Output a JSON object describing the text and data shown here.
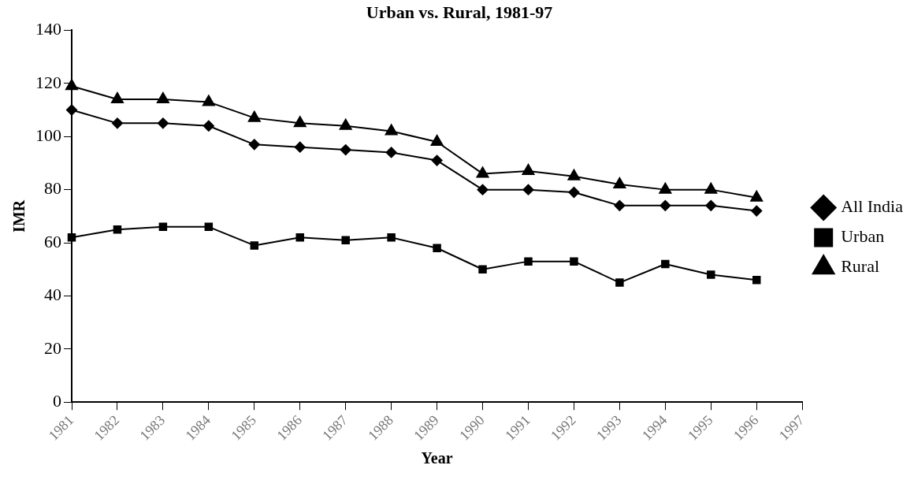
{
  "chart_data": {
    "type": "line",
    "title": "Urban vs. Rural, 1981-97",
    "xlabel": "Year",
    "ylabel": "IMR",
    "categories": [
      "1981",
      "1982",
      "1983",
      "1984",
      "1985",
      "1986",
      "1987",
      "1988",
      "1989",
      "1990",
      "1991",
      "1992",
      "1993",
      "1994",
      "1995",
      "1996",
      "1997"
    ],
    "series": [
      {
        "name": "All India",
        "color": "#000000",
        "marker": "diamond",
        "values": [
          110,
          105,
          105,
          104,
          97,
          96,
          95,
          94,
          91,
          80,
          80,
          79,
          74,
          74,
          74,
          72,
          null
        ]
      },
      {
        "name": "Urban",
        "color": "#000000",
        "marker": "square",
        "values": [
          62,
          65,
          66,
          66,
          59,
          62,
          61,
          62,
          58,
          50,
          53,
          53,
          45,
          52,
          48,
          46,
          null
        ]
      },
      {
        "name": "Rural",
        "color": "#000000",
        "marker": "triangle",
        "values": [
          119,
          114,
          114,
          113,
          107,
          105,
          104,
          102,
          98,
          86,
          87,
          85,
          82,
          80,
          80,
          77,
          null
        ]
      }
    ],
    "ylim": [
      0,
      140
    ],
    "yticks": [
      0,
      20,
      40,
      60,
      80,
      100,
      120,
      140
    ],
    "grid": false,
    "legend": "right",
    "line_style": "solid"
  }
}
